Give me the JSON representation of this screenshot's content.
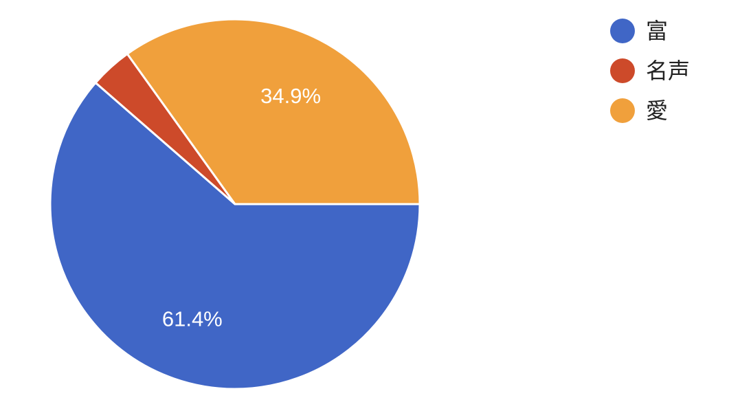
{
  "chart_data": {
    "type": "pie",
    "categories": [
      "富",
      "名声",
      "愛"
    ],
    "values": [
      61.4,
      3.7,
      34.9
    ],
    "colors": [
      "#4066c6",
      "#cd4a2a",
      "#f0a03c"
    ],
    "slice_labels": [
      "61.4%",
      "",
      "34.9%"
    ],
    "start_angle_deg": 0,
    "direction": "clockwise",
    "legend_position": "top-right"
  }
}
